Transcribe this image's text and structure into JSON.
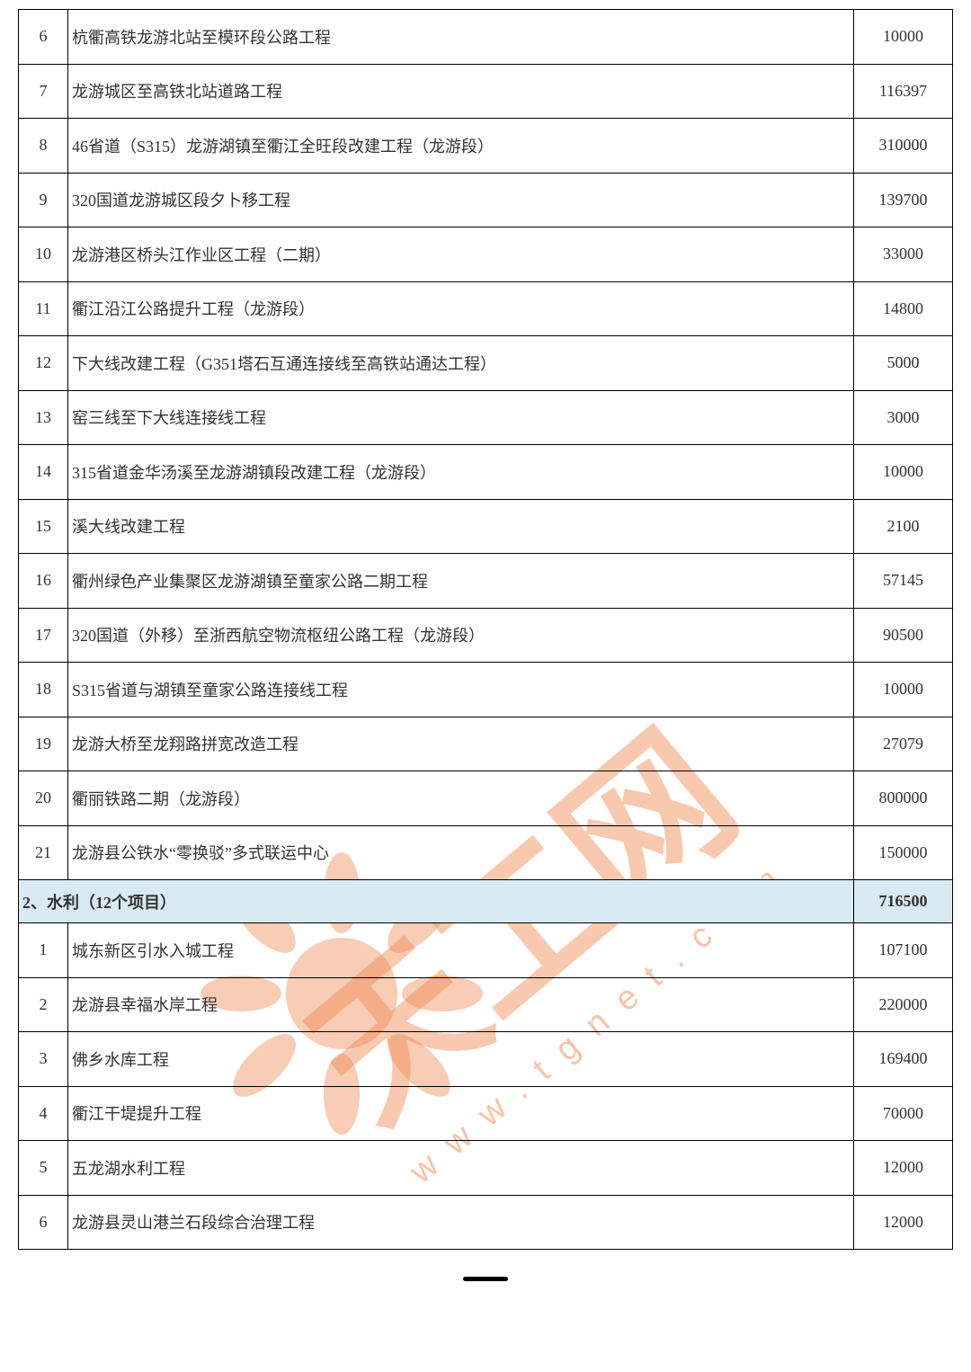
{
  "table": {
    "columns": {
      "num_width": 55,
      "amount_width": 110
    },
    "row_height": 60.5,
    "section_row_height": 48,
    "border_color": "#000000",
    "text_color": "#333333",
    "font_size": 18,
    "section_bg_color": "#d9eaf3",
    "background_color": "#ffffff",
    "rows_part1": [
      {
        "num": "6",
        "name": "杭衢高铁龙游北站至模环段公路工程",
        "amount": "10000"
      },
      {
        "num": "7",
        "name": "龙游城区至高铁北站道路工程",
        "amount": "116397"
      },
      {
        "num": "8",
        "name": "46省道（S315）龙游湖镇至衢江全旺段改建工程（龙游段）",
        "amount": "310000"
      },
      {
        "num": "9",
        "name": "320国道龙游城区段夕卜移工程",
        "amount": "139700"
      },
      {
        "num": "10",
        "name": "龙游港区桥头江作业区工程（二期）",
        "amount": "33000"
      },
      {
        "num": "11",
        "name": "衢江沿江公路提升工程（龙游段）",
        "amount": "14800"
      },
      {
        "num": "12",
        "name": "下大线改建工程（G351塔石互通连接线至高铁站通达工程）",
        "amount": "5000"
      },
      {
        "num": "13",
        "name": "窑三线至下大线连接线工程",
        "amount": "3000"
      },
      {
        "num": "14",
        "name": "315省道金华汤溪至龙游湖镇段改建工程（龙游段）",
        "amount": "10000"
      },
      {
        "num": "15",
        "name": "溪大线改建工程",
        "amount": "2100"
      },
      {
        "num": "16",
        "name": "衢州绿色产业集聚区龙游湖镇至童家公路二期工程",
        "amount": "57145"
      },
      {
        "num": "17",
        "name": "320国道（外移）至浙西航空物流枢纽公路工程（龙游段）",
        "amount": "90500"
      },
      {
        "num": "18",
        "name": "S315省道与湖镇至童家公路连接线工程",
        "amount": "10000"
      },
      {
        "num": "19",
        "name": "龙游大桥至龙翔路拼宽改造工程",
        "amount": "27079"
      },
      {
        "num": "20",
        "name": "衢丽铁路二期（龙游段）",
        "amount": "800000"
      },
      {
        "num": "21",
        "name": "龙游县公铁水“零换驳”多式联运中心",
        "amount": "150000"
      }
    ],
    "section": {
      "title": "2、水利（12个项目）",
      "amount": "716500"
    },
    "rows_part2": [
      {
        "num": "1",
        "name": "城东新区引水入城工程",
        "amount": "107100"
      },
      {
        "num": "2",
        "name": "龙游县幸福水岸工程",
        "amount": "220000"
      },
      {
        "num": "3",
        "name": "佛乡水库工程",
        "amount": "169400"
      },
      {
        "num": "4",
        "name": "衢江干堤提升工程",
        "amount": "70000"
      },
      {
        "num": "5",
        "name": "五龙湖水利工程",
        "amount": "12000"
      },
      {
        "num": "6",
        "name": "龙游县灵山港兰石段综合治理工程",
        "amount": "12000"
      }
    ]
  },
  "watermark": {
    "color": "#f08850",
    "opacity": 0.45,
    "url_text": "www.tgnet.com",
    "cn_text": "天工网",
    "url_fontsize": 38,
    "cn_fontsize": 180
  }
}
